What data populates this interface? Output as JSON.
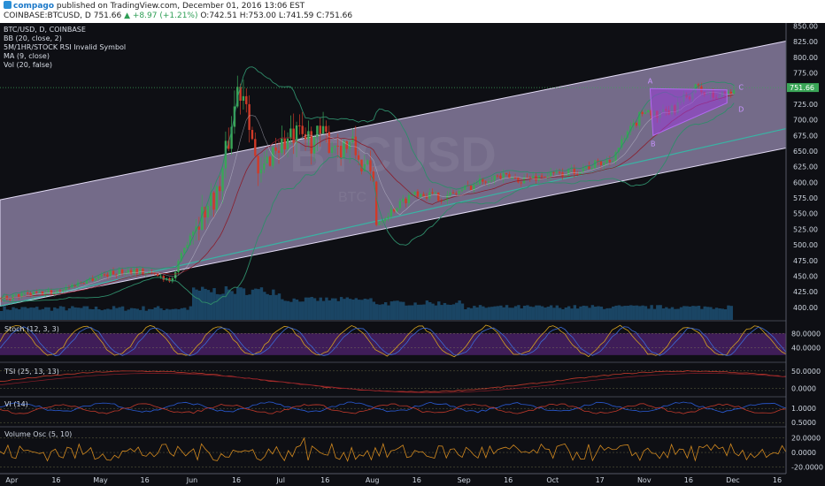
{
  "header": {
    "username": "compago",
    "published": "published on TradingView.com, December 01, 2016 13:06 EST",
    "symbol": "COINBASE:BTCUSD, D",
    "last": "751.66",
    "change": "+8.97 (+1.21%)",
    "o": "O:742.51",
    "h": "H:753.00",
    "lo": "L:741.59",
    "c": "C:751.66"
  },
  "legend": [
    "BTC/USD, D, COINBASE",
    "BB (20, close, 2)",
    "5M/1HR/STOCK RSI Invalid Symbol",
    "MA (9, close)",
    "Vol (20, false)"
  ],
  "watermark": "BTCUSD",
  "watermark_sub": "BTC",
  "price_badge": "751.66",
  "panel_titles": [
    "Stoch (12, 3, 3)",
    "TSI (25, 13, 13)",
    "VI (14)",
    "Volume Osc (5, 10)"
  ],
  "colors": {
    "bg": "#0e0f14",
    "channel": "#c9b8ea",
    "up": "#3aa657",
    "down": "#d03a28",
    "bb": "#2f8c6a",
    "ma": "#8a1f2d",
    "accent": "#9a3ad8"
  },
  "chart_data": [
    {
      "type": "line",
      "title": "BTC/USD, D, COINBASE",
      "x_ticks": [
        "Apr",
        "16",
        "May",
        "16",
        "Jun",
        "16",
        "Jul",
        "16",
        "Aug",
        "16",
        "Sep",
        "16",
        "Oct",
        "17",
        "Nov",
        "16",
        "Dec",
        "16"
      ],
      "y_ticks": [
        400,
        425,
        450,
        475,
        500,
        525,
        550,
        575,
        600,
        625,
        650,
        675,
        700,
        725,
        750,
        775,
        800,
        825,
        850
      ],
      "ylim": [
        380,
        855
      ],
      "x_domain": [
        "2016-03-28",
        "2016-12-19"
      ],
      "series": [
        {
          "x": [
            "2016-03-28",
            "2016-04-15",
            "2016-05-01",
            "2016-05-12",
            "2016-05-25",
            "2016-06-01",
            "2016-06-10",
            "2016-06-16",
            "2016-06-19",
            "2016-06-23",
            "2016-06-28",
            "2016-07-05",
            "2016-07-15",
            "2016-07-25",
            "2016-08-01",
            "2016-08-02",
            "2016-08-15",
            "2016-08-25",
            "2016-09-10",
            "2016-09-20",
            "2016-10-05",
            "2016-10-20",
            "2016-10-28",
            "2016-11-01",
            "2016-11-05",
            "2016-11-10",
            "2016-11-18",
            "2016-11-25",
            "2016-12-01"
          ],
          "values": [
            415,
            425,
            452,
            460,
            445,
            530,
            590,
            750,
            745,
            600,
            655,
            670,
            670,
            655,
            600,
            535,
            585,
            575,
            610,
            605,
            615,
            635,
            690,
            720,
            705,
            715,
            750,
            735,
            751.66
          ]
        }
      ],
      "annotations": {
        "pattern_points": [
          "A",
          "B",
          "C",
          "D"
        ]
      },
      "last_price": 751.66
    },
    {
      "type": "line",
      "title": "Stoch (12, 3, 3)",
      "y_ticks": [
        40,
        80
      ],
      "y_tick_labels": [
        "40.0000",
        "80.0000"
      ],
      "ylim": [
        5,
        110
      ]
    },
    {
      "type": "line",
      "title": "TSI (25, 13, 13)",
      "y_ticks": [
        0,
        50
      ],
      "y_tick_labels": [
        "0.0000",
        "50.0000"
      ],
      "ylim": [
        -25,
        70
      ]
    },
    {
      "type": "line",
      "title": "VI (14)",
      "y_ticks": [
        0.5,
        1
      ],
      "y_tick_labels": [
        "0.5000",
        "1.0000"
      ],
      "ylim": [
        0.35,
        1.35
      ]
    },
    {
      "type": "line",
      "title": "Volume Osc (5, 10)",
      "y_ticks": [
        -20,
        0,
        20
      ],
      "y_tick_labels": [
        "-20.0000",
        "0.0000",
        "20.0000"
      ],
      "ylim": [
        -28,
        33
      ]
    }
  ]
}
